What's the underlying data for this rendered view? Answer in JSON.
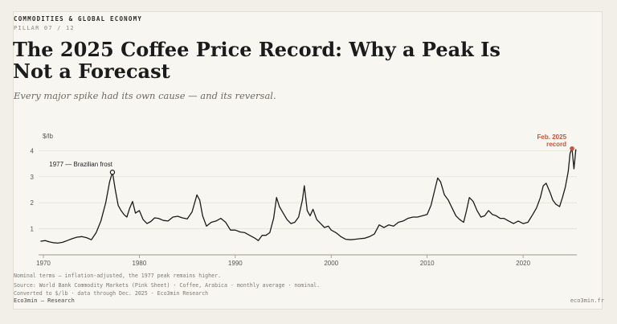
{
  "header": {
    "kicker": "COMMODITIES & GLOBAL ECONOMY",
    "pillar": "PILLAR 07 / 12",
    "title": "The 2025 Coffee Price Record: Why a Peak Is Not a Forecast",
    "subtitle": "Every major spike had its own cause — and its reversal."
  },
  "footer": {
    "note": "Nominal terms — inflation-adjusted, the 1977 peak remains higher.",
    "source": "Source: World Bank Commodity Markets (Pink Sheet) · Coffee, Arabica · monthly average · nominal.",
    "conversion": "Converted to $/lb · data through Dec. 2025 · Eco3min Research",
    "brand": "Eco3min — Research",
    "site": "eco3min.fr"
  },
  "colors": {
    "line": "#1b1b1b",
    "accent": "#c0583c",
    "grid": "#e6e2d9",
    "axis": "#9a958d"
  },
  "chart_data": {
    "type": "line",
    "ylabel": "$/lb",
    "xlim": [
      1969.5,
      2025.6
    ],
    "ylim": [
      0,
      4.35
    ],
    "yticks": [
      1,
      2,
      3,
      4
    ],
    "xticks": [
      1970,
      1980,
      1990,
      2000,
      2010,
      2020
    ],
    "grid": true,
    "annotations": [
      {
        "text": "1977 — Brazilian frost",
        "x": 1977.2,
        "y": 3.17,
        "style": "dark"
      },
      {
        "text": "Feb. 2025 record",
        "x": 2025.1,
        "y": 4.08,
        "style": "accent"
      }
    ],
    "series": [
      {
        "x": [
          1969.7,
          1970.2,
          1970.6,
          1971.0,
          1971.5,
          1972.0,
          1972.5,
          1973.0,
          1973.5,
          1974.0,
          1974.5,
          1975.0,
          1975.5,
          1976.0,
          1976.5,
          1976.9,
          1977.2,
          1977.5,
          1977.8,
          1978.1,
          1978.4,
          1978.7,
          1979.0,
          1979.3,
          1979.6,
          1980.0,
          1980.4,
          1980.8,
          1981.2,
          1981.6,
          1982.0,
          1982.5,
          1983.0,
          1983.5,
          1984.0,
          1984.5,
          1985.0,
          1985.5,
          1986.0,
          1986.3,
          1986.6,
          1987.0,
          1987.5,
          1988.0,
          1988.5,
          1989.0,
          1989.5,
          1990.0,
          1990.5,
          1991.0,
          1991.5,
          1992.0,
          1992.4,
          1992.8,
          1993.2,
          1993.6,
          1994.0,
          1994.3,
          1994.6,
          1995.0,
          1995.4,
          1995.8,
          1996.2,
          1996.6,
          1997.0,
          1997.2,
          1997.5,
          1997.8,
          1998.1,
          1998.5,
          1998.9,
          1999.3,
          1999.7,
          2000.0,
          2000.5,
          2001.0,
          2001.5,
          2002.0,
          2002.5,
          2003.0,
          2003.5,
          2004.0,
          2004.5,
          2005.0,
          2005.5,
          2006.0,
          2006.5,
          2007.0,
          2007.5,
          2008.0,
          2008.5,
          2009.0,
          2009.5,
          2010.0,
          2010.4,
          2010.8,
          2011.1,
          2011.4,
          2011.8,
          2012.2,
          2012.6,
          2013.0,
          2013.4,
          2013.8,
          2014.1,
          2014.4,
          2014.8,
          2015.2,
          2015.6,
          2016.0,
          2016.4,
          2016.8,
          2017.2,
          2017.6,
          2018.0,
          2018.5,
          2019.0,
          2019.5,
          2020.0,
          2020.5,
          2021.0,
          2021.4,
          2021.8,
          2022.1,
          2022.4,
          2022.8,
          2023.1,
          2023.4,
          2023.8,
          2024.1,
          2024.4,
          2024.7,
          2024.9,
          2025.1,
          2025.3,
          2025.5
        ],
        "values": [
          0.52,
          0.55,
          0.5,
          0.47,
          0.45,
          0.48,
          0.55,
          0.62,
          0.68,
          0.7,
          0.66,
          0.58,
          0.85,
          1.3,
          2.0,
          2.8,
          3.17,
          2.5,
          1.9,
          1.7,
          1.55,
          1.45,
          1.8,
          2.05,
          1.6,
          1.7,
          1.35,
          1.2,
          1.28,
          1.42,
          1.4,
          1.32,
          1.3,
          1.45,
          1.48,
          1.42,
          1.38,
          1.65,
          2.3,
          2.1,
          1.5,
          1.1,
          1.25,
          1.3,
          1.4,
          1.25,
          0.95,
          0.95,
          0.88,
          0.85,
          0.75,
          0.65,
          0.55,
          0.75,
          0.75,
          0.85,
          1.4,
          2.2,
          1.85,
          1.6,
          1.35,
          1.2,
          1.25,
          1.45,
          2.1,
          2.65,
          1.7,
          1.5,
          1.75,
          1.35,
          1.2,
          1.05,
          1.1,
          0.95,
          0.85,
          0.7,
          0.6,
          0.58,
          0.6,
          0.62,
          0.64,
          0.7,
          0.8,
          1.15,
          1.05,
          1.15,
          1.1,
          1.25,
          1.3,
          1.4,
          1.45,
          1.45,
          1.5,
          1.55,
          1.9,
          2.5,
          2.95,
          2.8,
          2.3,
          2.1,
          1.8,
          1.5,
          1.35,
          1.25,
          1.7,
          2.2,
          2.05,
          1.7,
          1.45,
          1.5,
          1.7,
          1.55,
          1.5,
          1.4,
          1.4,
          1.3,
          1.2,
          1.3,
          1.2,
          1.25,
          1.55,
          1.8,
          2.2,
          2.65,
          2.75,
          2.4,
          2.1,
          1.95,
          1.85,
          2.2,
          2.6,
          3.2,
          3.9,
          4.08,
          3.3,
          4.05
        ]
      }
    ]
  }
}
